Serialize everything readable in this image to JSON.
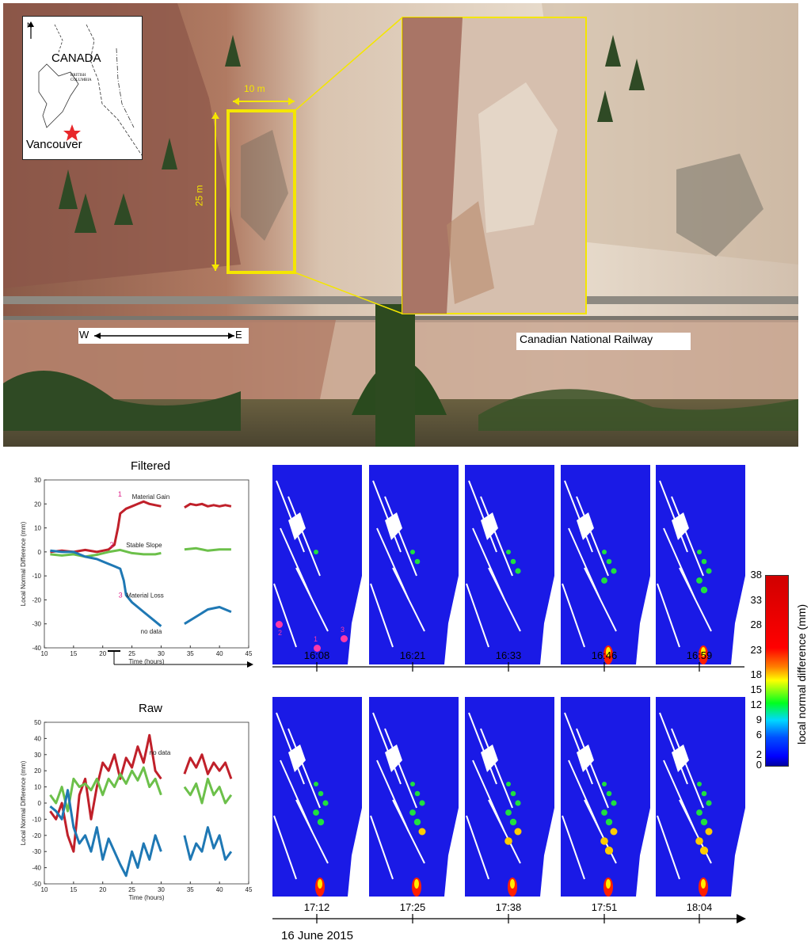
{
  "photo": {
    "inset_north": "N",
    "inset_country": "CANADA",
    "inset_province": "BRITISH COLUMBIA",
    "inset_city": "Vancouver",
    "scale_width": "10 m",
    "scale_height": "25 m",
    "direction_w": "W",
    "direction_e": "E",
    "railway_label": "Canadian National Railway"
  },
  "filtered_title": "Filtered",
  "raw_title": "Raw",
  "map_times_top": [
    "16:08",
    "16:21",
    "16:33",
    "16:46",
    "16:59"
  ],
  "map_times_bottom": [
    "17:12",
    "17:25",
    "17:38",
    "17:51",
    "18:04"
  ],
  "date_label": "16 June 2015",
  "marker_labels": [
    "1",
    "2",
    "3"
  ],
  "colorbar": {
    "label": "local normal difference (mm)",
    "ticks": [
      "38",
      "33",
      "28",
      "23",
      "18",
      "15",
      "12",
      "9",
      "6",
      "2",
      "0"
    ]
  },
  "chart_data": [
    {
      "type": "line",
      "title": "Filtered",
      "xlabel": "Time (hours)",
      "ylabel": "Local Normal Difference (mm)",
      "xlim": [
        10,
        45
      ],
      "ylim": [
        -40,
        30
      ],
      "xticks": [
        "10",
        "15",
        "20",
        "25",
        "30",
        "35",
        "40",
        "45"
      ],
      "yticks": [
        "30",
        "20",
        "10",
        "0",
        "-10",
        "-20",
        "-30",
        "-40"
      ],
      "annotations": [
        "Material Gain",
        "Stable Slope",
        "Material Loss",
        "no data"
      ],
      "series": [
        {
          "color": "#c0202a",
          "segments": [
            [
              [
                11,
                0
              ],
              [
                13,
                0.5
              ],
              [
                15,
                0
              ],
              [
                17,
                0.8
              ],
              [
                19,
                0
              ],
              [
                21,
                1
              ],
              [
                22,
                3
              ],
              [
                22.6,
                10
              ],
              [
                23,
                16
              ],
              [
                24,
                18
              ],
              [
                25,
                19
              ],
              [
                26,
                20
              ],
              [
                27,
                21
              ],
              [
                28,
                20
              ],
              [
                29,
                19.5
              ],
              [
                30,
                19
              ]
            ],
            [
              [
                34,
                18.5
              ],
              [
                35,
                20
              ],
              [
                36,
                19.5
              ],
              [
                37,
                20
              ],
              [
                38,
                19
              ],
              [
                39,
                19.5
              ],
              [
                40,
                19
              ],
              [
                41,
                19.5
              ],
              [
                42,
                19
              ]
            ]
          ]
        },
        {
          "color": "#6cc04a",
          "segments": [
            [
              [
                11,
                -1
              ],
              [
                13,
                -1.5
              ],
              [
                15,
                -1
              ],
              [
                17,
                -2
              ],
              [
                19,
                -1.2
              ],
              [
                21,
                0
              ],
              [
                23,
                0.8
              ],
              [
                25,
                -0.5
              ],
              [
                27,
                -1
              ],
              [
                29,
                -1
              ],
              [
                30,
                -0.5
              ]
            ],
            [
              [
                34,
                1
              ],
              [
                36,
                1.5
              ],
              [
                38,
                0.5
              ],
              [
                40,
                1
              ],
              [
                42,
                1
              ]
            ]
          ]
        },
        {
          "color": "#1f78b4",
          "segments": [
            [
              [
                11,
                0.5
              ],
              [
                13,
                0
              ],
              [
                15,
                0
              ],
              [
                17,
                -2
              ],
              [
                19,
                -3
              ],
              [
                21,
                -5
              ],
              [
                22,
                -6
              ],
              [
                23,
                -7
              ],
              [
                23.6,
                -12
              ],
              [
                24,
                -18
              ],
              [
                25,
                -21
              ],
              [
                27,
                -25
              ],
              [
                29,
                -29
              ],
              [
                30,
                -31
              ]
            ],
            [
              [
                34,
                -30
              ],
              [
                36,
                -27
              ],
              [
                38,
                -24
              ],
              [
                40,
                -23
              ],
              [
                42,
                -25
              ]
            ]
          ]
        }
      ]
    },
    {
      "type": "line",
      "title": "Raw",
      "xlabel": "Time (hours)",
      "ylabel": "Local Normal Difference (mm)",
      "xlim": [
        10,
        45
      ],
      "ylim": [
        -50,
        50
      ],
      "xticks": [
        "10",
        "15",
        "20",
        "25",
        "30",
        "35",
        "40",
        "45"
      ],
      "yticks": [
        "50",
        "40",
        "30",
        "20",
        "10",
        "0",
        "-10",
        "-20",
        "-30",
        "-40",
        "-50"
      ],
      "annotations": [
        "no data"
      ],
      "series": [
        {
          "color": "#c0202a",
          "segments": [
            [
              [
                11,
                -5
              ],
              [
                12,
                -10
              ],
              [
                13,
                0
              ],
              [
                14,
                -20
              ],
              [
                15,
                -30
              ],
              [
                16,
                5
              ],
              [
                17,
                15
              ],
              [
                18,
                -10
              ],
              [
                19,
                10
              ],
              [
                20,
                25
              ],
              [
                21,
                20
              ],
              [
                22,
                30
              ],
              [
                23,
                15
              ],
              [
                24,
                28
              ],
              [
                25,
                22
              ],
              [
                26,
                35
              ],
              [
                27,
                25
              ],
              [
                28,
                42
              ],
              [
                29,
                20
              ],
              [
                30,
                15
              ]
            ],
            [
              [
                34,
                18
              ],
              [
                35,
                28
              ],
              [
                36,
                22
              ],
              [
                37,
                30
              ],
              [
                38,
                18
              ],
              [
                39,
                25
              ],
              [
                40,
                20
              ],
              [
                41,
                25
              ],
              [
                42,
                15
              ]
            ]
          ]
        },
        {
          "color": "#6cc04a",
          "segments": [
            [
              [
                11,
                5
              ],
              [
                12,
                0
              ],
              [
                13,
                10
              ],
              [
                14,
                -5
              ],
              [
                15,
                15
              ],
              [
                16,
                10
              ],
              [
                17,
                12
              ],
              [
                18,
                8
              ],
              [
                19,
                15
              ],
              [
                20,
                5
              ],
              [
                21,
                15
              ],
              [
                22,
                10
              ],
              [
                23,
                18
              ],
              [
                24,
                12
              ],
              [
                25,
                20
              ],
              [
                26,
                14
              ],
              [
                27,
                22
              ],
              [
                28,
                10
              ],
              [
                29,
                15
              ],
              [
                30,
                5
              ]
            ],
            [
              [
                34,
                10
              ],
              [
                35,
                5
              ],
              [
                36,
                12
              ],
              [
                37,
                0
              ],
              [
                38,
                15
              ],
              [
                39,
                5
              ],
              [
                40,
                10
              ],
              [
                41,
                0
              ],
              [
                42,
                5
              ]
            ]
          ]
        },
        {
          "color": "#1f78b4",
          "segments": [
            [
              [
                11,
                -2
              ],
              [
                12,
                -5
              ],
              [
                13,
                -10
              ],
              [
                14,
                8
              ],
              [
                15,
                -15
              ],
              [
                16,
                -25
              ],
              [
                17,
                -20
              ],
              [
                18,
                -30
              ],
              [
                19,
                -15
              ],
              [
                20,
                -35
              ],
              [
                21,
                -22
              ],
              [
                22,
                -30
              ],
              [
                23,
                -38
              ],
              [
                24,
                -45
              ],
              [
                25,
                -30
              ],
              [
                26,
                -40
              ],
              [
                27,
                -25
              ],
              [
                28,
                -35
              ],
              [
                29,
                -20
              ],
              [
                30,
                -30
              ]
            ],
            [
              [
                34,
                -20
              ],
              [
                35,
                -35
              ],
              [
                36,
                -25
              ],
              [
                37,
                -30
              ],
              [
                38,
                -15
              ],
              [
                39,
                -28
              ],
              [
                40,
                -20
              ],
              [
                41,
                -35
              ],
              [
                42,
                -30
              ]
            ]
          ]
        }
      ]
    }
  ]
}
